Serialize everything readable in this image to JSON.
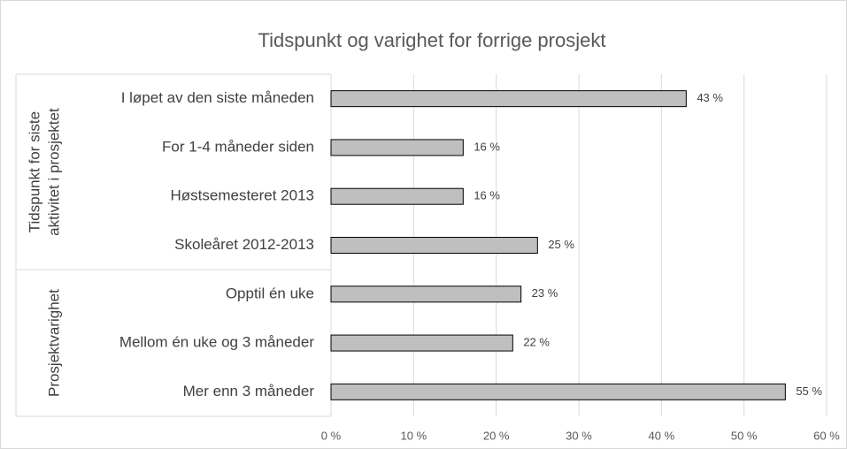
{
  "chart_data": {
    "type": "bar",
    "horizontal": true,
    "title": "Tidspunkt og varighet for forrige prosjekt",
    "groups": [
      {
        "label": [
          "Tidspunkt for siste",
          "aktivitet i prosjektet"
        ],
        "categories": [
          "I løpet av den siste måneden",
          "For 1-4 måneder siden",
          "Høstsemesteret 2013",
          "Skoleåret 2012-2013"
        ],
        "values": [
          43,
          16,
          16,
          25
        ],
        "value_labels": [
          "43 %",
          "16 %",
          "16 %",
          "25 %"
        ]
      },
      {
        "label": [
          "Prosjektvarighet"
        ],
        "categories": [
          "Opptil én uke",
          "Mellom én uke og 3 måneder",
          "Mer enn 3 måneder"
        ],
        "values": [
          23,
          22,
          55
        ],
        "value_labels": [
          "23 %",
          "22 %",
          "55 %"
        ]
      }
    ],
    "color": "#bfbfbf",
    "xlim": [
      0,
      60
    ],
    "xticks": [
      {
        "value": 0,
        "label": "0 %"
      },
      {
        "value": 10,
        "label": "10 %"
      },
      {
        "value": 20,
        "label": "20 %"
      },
      {
        "value": 30,
        "label": "30 %"
      },
      {
        "value": 40,
        "label": "40 %"
      },
      {
        "value": 50,
        "label": "50 %"
      },
      {
        "value": 60,
        "label": "60 %"
      }
    ],
    "grid": true
  }
}
